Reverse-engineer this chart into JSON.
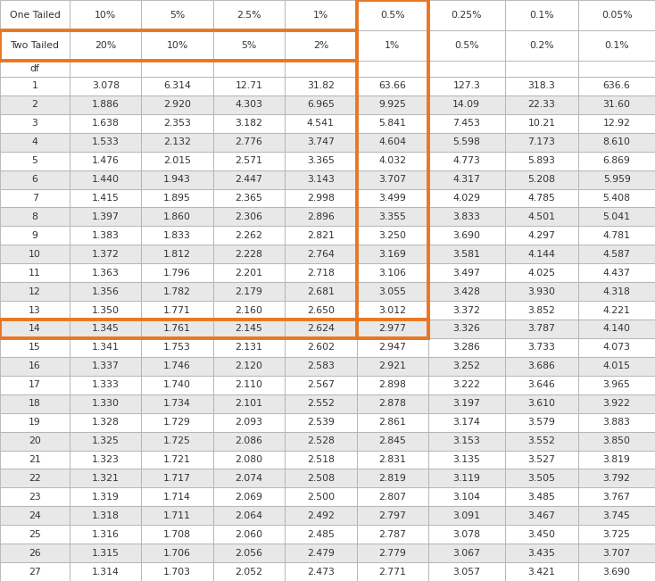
{
  "one_tailed": [
    "One Tailed",
    "10%",
    "5%",
    "2.5%",
    "1%",
    "0.5%",
    "0.25%",
    "0.1%",
    "0.05%"
  ],
  "two_tailed": [
    "Two Tailed",
    "20%",
    "10%",
    "5%",
    "2%",
    "1%",
    "0.5%",
    "0.2%",
    "0.1%"
  ],
  "df_label": "df",
  "highlight_col_idx": 5,
  "highlight_row_df": 14,
  "data_formatted": [
    [
      "1",
      "3.078",
      "6.314",
      "12.71",
      "31.82",
      "63.66",
      "127.3",
      "318.3",
      "636.6"
    ],
    [
      "2",
      "1.886",
      "2.920",
      "4.303",
      "6.965",
      "9.925",
      "14.09",
      "22.33",
      "31.60"
    ],
    [
      "3",
      "1.638",
      "2.353",
      "3.182",
      "4.541",
      "5.841",
      "7.453",
      "10.21",
      "12.92"
    ],
    [
      "4",
      "1.533",
      "2.132",
      "2.776",
      "3.747",
      "4.604",
      "5.598",
      "7.173",
      "8.610"
    ],
    [
      "5",
      "1.476",
      "2.015",
      "2.571",
      "3.365",
      "4.032",
      "4.773",
      "5.893",
      "6.869"
    ],
    [
      "6",
      "1.440",
      "1.943",
      "2.447",
      "3.143",
      "3.707",
      "4.317",
      "5.208",
      "5.959"
    ],
    [
      "7",
      "1.415",
      "1.895",
      "2.365",
      "2.998",
      "3.499",
      "4.029",
      "4.785",
      "5.408"
    ],
    [
      "8",
      "1.397",
      "1.860",
      "2.306",
      "2.896",
      "3.355",
      "3.833",
      "4.501",
      "5.041"
    ],
    [
      "9",
      "1.383",
      "1.833",
      "2.262",
      "2.821",
      "3.250",
      "3.690",
      "4.297",
      "4.781"
    ],
    [
      "10",
      "1.372",
      "1.812",
      "2.228",
      "2.764",
      "3.169",
      "3.581",
      "4.144",
      "4.587"
    ],
    [
      "11",
      "1.363",
      "1.796",
      "2.201",
      "2.718",
      "3.106",
      "3.497",
      "4.025",
      "4.437"
    ],
    [
      "12",
      "1.356",
      "1.782",
      "2.179",
      "2.681",
      "3.055",
      "3.428",
      "3.930",
      "4.318"
    ],
    [
      "13",
      "1.350",
      "1.771",
      "2.160",
      "2.650",
      "3.012",
      "3.372",
      "3.852",
      "4.221"
    ],
    [
      "14",
      "1.345",
      "1.761",
      "2.145",
      "2.624",
      "2.977",
      "3.326",
      "3.787",
      "4.140"
    ],
    [
      "15",
      "1.341",
      "1.753",
      "2.131",
      "2.602",
      "2.947",
      "3.286",
      "3.733",
      "4.073"
    ],
    [
      "16",
      "1.337",
      "1.746",
      "2.120",
      "2.583",
      "2.921",
      "3.252",
      "3.686",
      "4.015"
    ],
    [
      "17",
      "1.333",
      "1.740",
      "2.110",
      "2.567",
      "2.898",
      "3.222",
      "3.646",
      "3.965"
    ],
    [
      "18",
      "1.330",
      "1.734",
      "2.101",
      "2.552",
      "2.878",
      "3.197",
      "3.610",
      "3.922"
    ],
    [
      "19",
      "1.328",
      "1.729",
      "2.093",
      "2.539",
      "2.861",
      "3.174",
      "3.579",
      "3.883"
    ],
    [
      "20",
      "1.325",
      "1.725",
      "2.086",
      "2.528",
      "2.845",
      "3.153",
      "3.552",
      "3.850"
    ],
    [
      "21",
      "1.323",
      "1.721",
      "2.080",
      "2.518",
      "2.831",
      "3.135",
      "3.527",
      "3.819"
    ],
    [
      "22",
      "1.321",
      "1.717",
      "2.074",
      "2.508",
      "2.819",
      "3.119",
      "3.505",
      "3.792"
    ],
    [
      "23",
      "1.319",
      "1.714",
      "2.069",
      "2.500",
      "2.807",
      "3.104",
      "3.485",
      "3.767"
    ],
    [
      "24",
      "1.318",
      "1.711",
      "2.064",
      "2.492",
      "2.797",
      "3.091",
      "3.467",
      "3.745"
    ],
    [
      "25",
      "1.316",
      "1.708",
      "2.060",
      "2.485",
      "2.787",
      "3.078",
      "3.450",
      "3.725"
    ],
    [
      "26",
      "1.315",
      "1.706",
      "2.056",
      "2.479",
      "2.779",
      "3.067",
      "3.435",
      "3.707"
    ],
    [
      "27",
      "1.314",
      "1.703",
      "2.052",
      "2.473",
      "2.771",
      "3.057",
      "3.421",
      "3.690"
    ]
  ],
  "bg_color_light": "#e8e8e8",
  "bg_color_white": "#ffffff",
  "grid_color": "#b0b0b0",
  "orange_color": "#E87722",
  "text_color": "#333333",
  "figsize": [
    7.34,
    6.51
  ],
  "dpi": 100
}
